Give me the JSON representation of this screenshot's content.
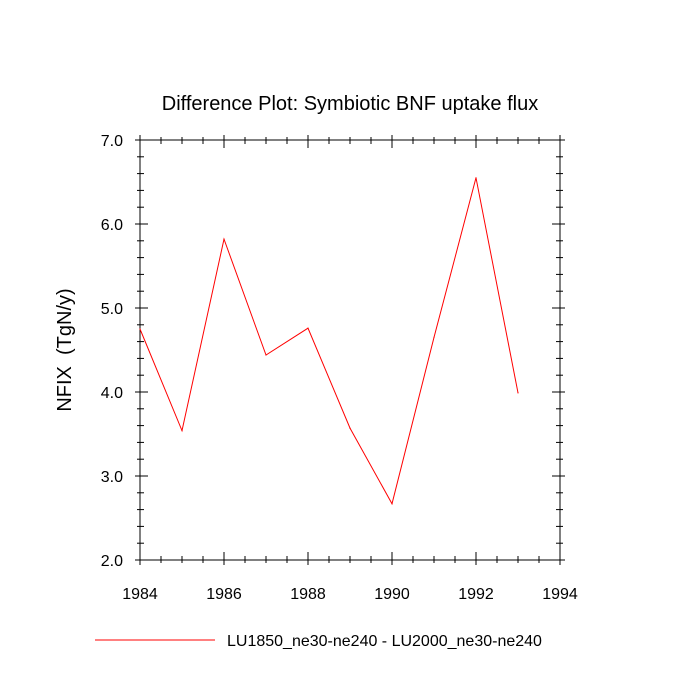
{
  "chart_data": {
    "type": "line",
    "title": "Difference Plot: Symbiotic BNF uptake flux",
    "xlabel": "",
    "ylabel": "NFIX  (TgN/y)",
    "xlim": [
      1984,
      1994
    ],
    "ylim": [
      2.0,
      7.0
    ],
    "x_ticks": [
      1984,
      1986,
      1988,
      1990,
      1992,
      1994
    ],
    "x_tick_labels": [
      "1984",
      "1986",
      "1988",
      "1990",
      "1992",
      "1994"
    ],
    "y_ticks": [
      2.0,
      3.0,
      4.0,
      5.0,
      6.0,
      7.0
    ],
    "y_tick_labels": [
      "2.0",
      "3.0",
      "4.0",
      "5.0",
      "6.0",
      "7.0"
    ],
    "x_minor_step": 0.5,
    "y_minor_step": 0.2,
    "grid": false,
    "legend_position": "bottom",
    "x": [
      1984,
      1985,
      1986,
      1987,
      1988,
      1989,
      1990,
      1991,
      1992,
      1993
    ],
    "series": [
      {
        "name": "LU1850_ne30-ne240 - LU2000_ne30-ne240",
        "color": "#ff0000",
        "values": [
          4.75,
          3.54,
          5.82,
          4.44,
          4.76,
          3.57,
          2.67,
          4.65,
          6.55,
          3.99
        ]
      }
    ]
  }
}
